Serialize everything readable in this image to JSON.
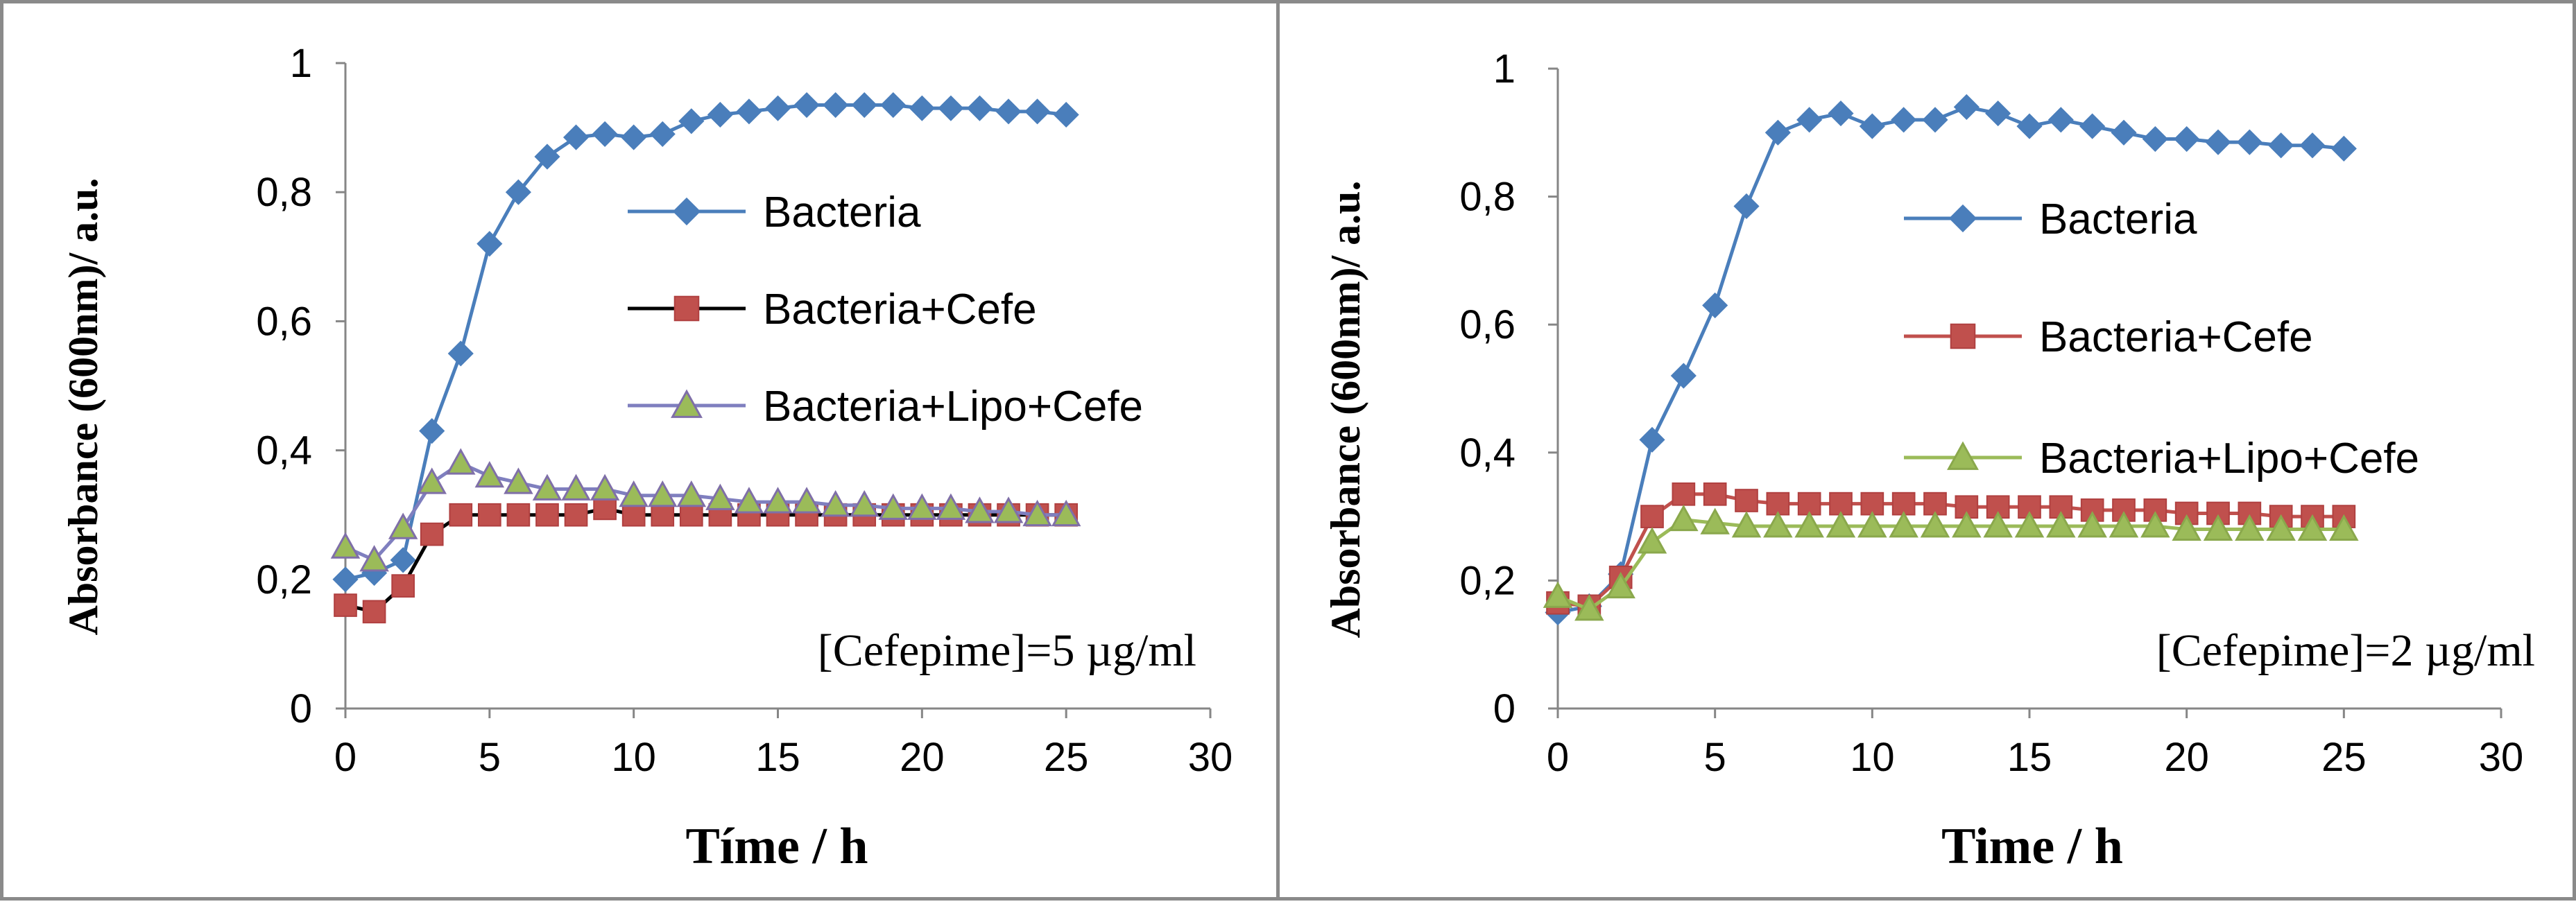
{
  "chart_data": [
    {
      "type": "line",
      "title": "",
      "annotation": "[Cefepime]=5 µg/ml",
      "xlabel": "Tíme / h",
      "ylabel": "Absorbance  (600nm)/ a.u.",
      "xlim": [
        0,
        30
      ],
      "ylim": [
        0,
        1
      ],
      "xticks": [
        "0",
        "5",
        "10",
        "15",
        "20",
        "25",
        "30"
      ],
      "yticks": [
        "0",
        "0,2",
        "0,4",
        "0,6",
        "0,8",
        "1"
      ],
      "legend_position": "right",
      "x": [
        0,
        1,
        2,
        3,
        4,
        5,
        6,
        7,
        8,
        9,
        10,
        11,
        12,
        13,
        14,
        15,
        16,
        17,
        18,
        19,
        20,
        21,
        22,
        23,
        24,
        25
      ],
      "series": [
        {
          "name": "Bacteria",
          "color": "#4a7ebb",
          "marker_color": "#4a7ebb",
          "marker": "diamond",
          "marker_stroke": "#4a7ebb",
          "values": [
            0.2,
            0.21,
            0.23,
            0.43,
            0.55,
            0.72,
            0.8,
            0.855,
            0.885,
            0.89,
            0.885,
            0.89,
            0.91,
            0.92,
            0.925,
            0.93,
            0.935,
            0.935,
            0.935,
            0.935,
            0.93,
            0.93,
            0.93,
            0.925,
            0.925,
            0.92
          ]
        },
        {
          "name": "Bacteria+Cefe",
          "color": "#000000",
          "marker_color": "#c0504d",
          "marker": "square",
          "marker_stroke": "#b04040",
          "values": [
            0.16,
            0.15,
            0.19,
            0.27,
            0.3,
            0.3,
            0.3,
            0.3,
            0.3,
            0.31,
            0.3,
            0.3,
            0.3,
            0.3,
            0.3,
            0.3,
            0.3,
            0.3,
            0.3,
            0.3,
            0.3,
            0.3,
            0.3,
            0.3,
            0.3,
            0.3
          ]
        },
        {
          "name": "Bacteria+Lipo+Cefe",
          "color": "#7f7fbf",
          "marker_color": "#9bbb59",
          "marker": "triangle",
          "marker_stroke": "#7f6fa8",
          "values": [
            0.25,
            0.23,
            0.28,
            0.35,
            0.38,
            0.36,
            0.35,
            0.34,
            0.34,
            0.34,
            0.33,
            0.33,
            0.33,
            0.325,
            0.32,
            0.32,
            0.32,
            0.315,
            0.315,
            0.31,
            0.31,
            0.31,
            0.305,
            0.305,
            0.3,
            0.3
          ]
        }
      ]
    },
    {
      "type": "line",
      "title": "",
      "annotation": "[Cefepime]=2 µg/ml",
      "xlabel": "Time / h",
      "ylabel": "Absorbance  (600nm)/ a.u.",
      "xlim": [
        0,
        30
      ],
      "ylim": [
        0,
        1
      ],
      "xticks": [
        "0",
        "5",
        "10",
        "15",
        "20",
        "25",
        "30"
      ],
      "yticks": [
        "0",
        "0,2",
        "0,4",
        "0,6",
        "0,8",
        "1"
      ],
      "legend_position": "right",
      "x": [
        0,
        1,
        2,
        3,
        4,
        5,
        6,
        7,
        8,
        9,
        10,
        11,
        12,
        13,
        14,
        15,
        16,
        17,
        18,
        19,
        20,
        21,
        22,
        23,
        24,
        25
      ],
      "series": [
        {
          "name": "Bacteria",
          "color": "#4a7ebb",
          "marker_color": "#4a7ebb",
          "marker": "diamond",
          "marker_stroke": "#4a7ebb",
          "values": [
            0.15,
            0.16,
            0.21,
            0.42,
            0.52,
            0.63,
            0.785,
            0.9,
            0.92,
            0.93,
            0.91,
            0.92,
            0.92,
            0.94,
            0.93,
            0.91,
            0.92,
            0.91,
            0.9,
            0.89,
            0.89,
            0.885,
            0.885,
            0.88,
            0.88,
            0.875
          ]
        },
        {
          "name": "Bacteria+Cefe",
          "color": "#c0504d",
          "marker_color": "#c0504d",
          "marker": "square",
          "marker_stroke": "#b04040",
          "values": [
            0.165,
            0.16,
            0.205,
            0.3,
            0.335,
            0.335,
            0.325,
            0.32,
            0.32,
            0.32,
            0.32,
            0.32,
            0.32,
            0.315,
            0.315,
            0.315,
            0.315,
            0.31,
            0.31,
            0.31,
            0.305,
            0.305,
            0.305,
            0.3,
            0.3,
            0.3
          ]
        },
        {
          "name": "Bacteria+Lipo+Cefe",
          "color": "#9bbb59",
          "marker_color": "#9bbb59",
          "marker": "triangle",
          "marker_stroke": "#8aa84c",
          "values": [
            0.175,
            0.155,
            0.19,
            0.26,
            0.295,
            0.29,
            0.285,
            0.285,
            0.285,
            0.285,
            0.285,
            0.285,
            0.285,
            0.285,
            0.285,
            0.285,
            0.285,
            0.285,
            0.285,
            0.285,
            0.28,
            0.28,
            0.28,
            0.28,
            0.28,
            0.28
          ]
        }
      ]
    }
  ]
}
